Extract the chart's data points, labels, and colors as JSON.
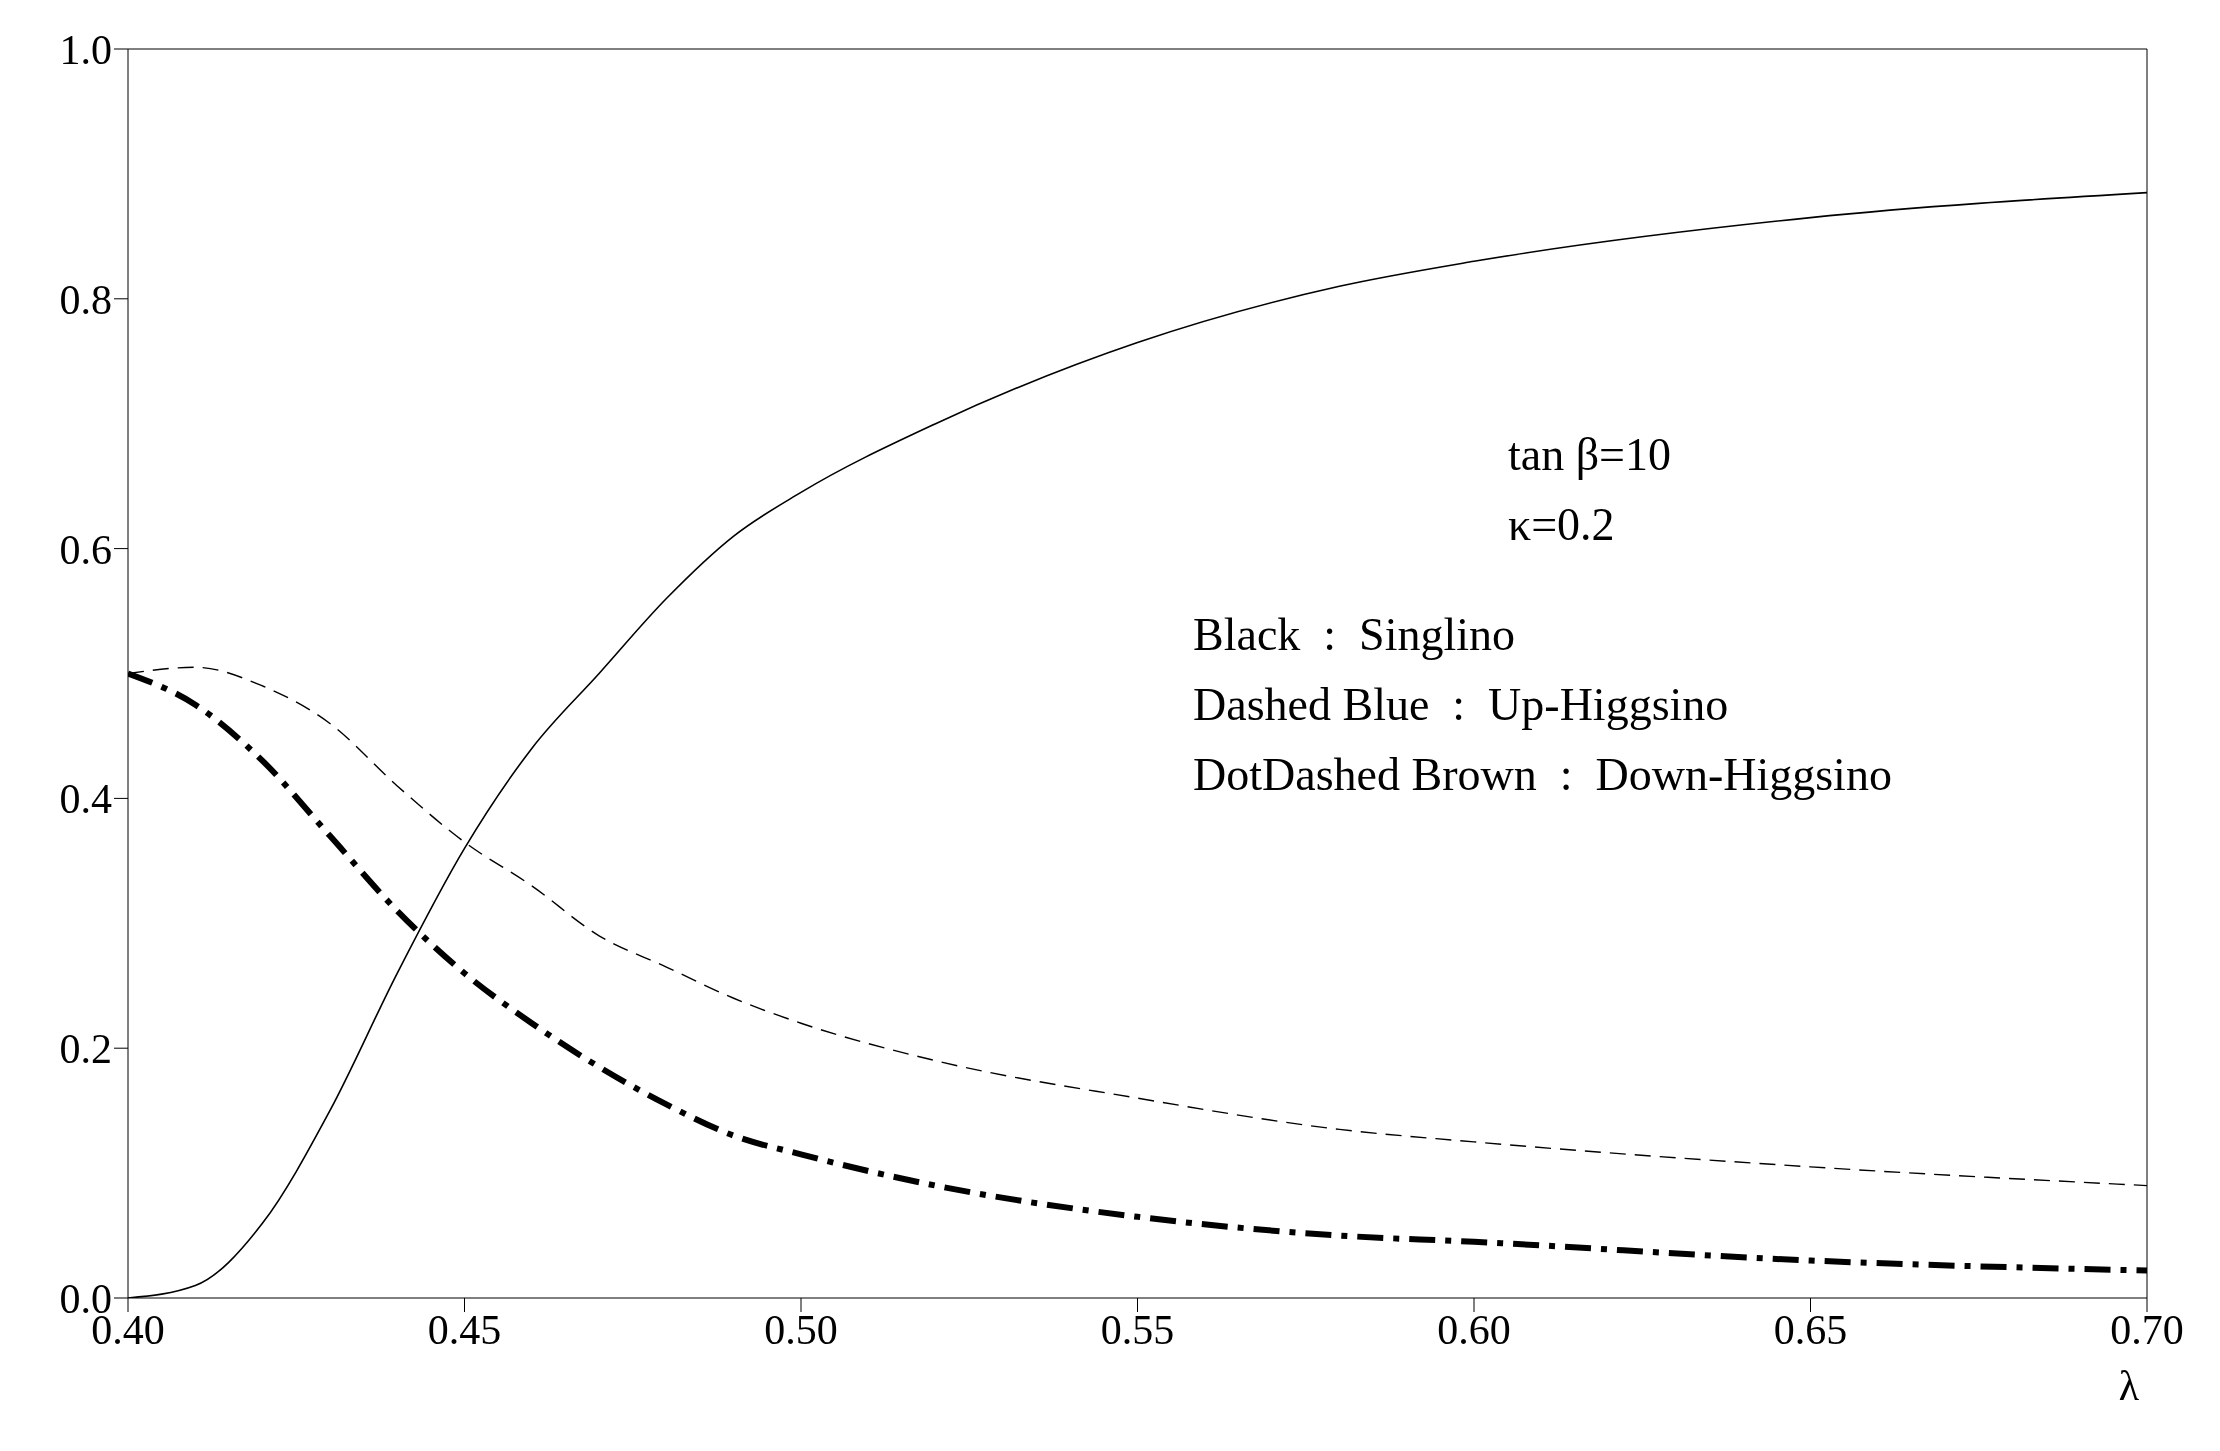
{
  "chart_data": {
    "type": "line",
    "xlabel": "λ",
    "x": [
      0.4,
      0.41,
      0.42,
      0.43,
      0.44,
      0.45,
      0.46,
      0.47,
      0.48,
      0.49,
      0.5,
      0.52,
      0.55,
      0.58,
      0.6,
      0.65,
      0.7
    ],
    "series": [
      {
        "color": "#000000",
        "line_style": "solid",
        "values": [
          0,
          0.01,
          0.06,
          0.15,
          0.26,
          0.36,
          0.44,
          0.5,
          0.56,
          0.61,
          0.645,
          0.7,
          0.765,
          0.81,
          0.83,
          0.865,
          0.885
        ]
      },
      {
        "color": "#000000",
        "line_style": "dashed",
        "values": [
          0.5,
          0.505,
          0.49,
          0.46,
          0.41,
          0.365,
          0.33,
          0.29,
          0.265,
          0.24,
          0.22,
          0.19,
          0.16,
          0.135,
          0.125,
          0.105,
          0.09
        ]
      },
      {
        "color": "#000000",
        "line_style": "dashdot",
        "values": [
          0.5,
          0.475,
          0.43,
          0.37,
          0.31,
          0.26,
          0.22,
          0.185,
          0.155,
          0.13,
          0.115,
          0.09,
          0.065,
          0.05,
          0.045,
          0.03,
          0.022
        ]
      }
    ],
    "xlim": [
      0.4,
      0.7
    ],
    "xticks": [
      {
        "value": 0.4,
        "label": "0.40"
      },
      {
        "value": 0.45,
        "label": "0.45"
      },
      {
        "value": 0.5,
        "label": "0.50"
      },
      {
        "value": 0.55,
        "label": "0.55"
      },
      {
        "value": 0.6,
        "label": "0.60"
      },
      {
        "value": 0.65,
        "label": "0.65"
      },
      {
        "value": 0.7,
        "label": "0.70"
      }
    ],
    "ylim": [
      0,
      1
    ],
    "yticks": [
      {
        "value": 0,
        "label": "0.0"
      },
      {
        "value": 0.2,
        "label": "0.2"
      },
      {
        "value": 0.4,
        "label": "0.4"
      },
      {
        "value": 0.6,
        "label": "0.6"
      },
      {
        "value": 0.8,
        "label": "0.8"
      },
      {
        "value": 1,
        "label": "1.0"
      }
    ],
    "grid": false,
    "legend": false,
    "marker": "none",
    "annotations": [
      "tan β=10",
      "κ=0.2",
      "Black  :  Singlino",
      "Dashed Blue  :  Up-Higgsino",
      "DotDashed Brown  :  Down-Higgsino"
    ]
  }
}
